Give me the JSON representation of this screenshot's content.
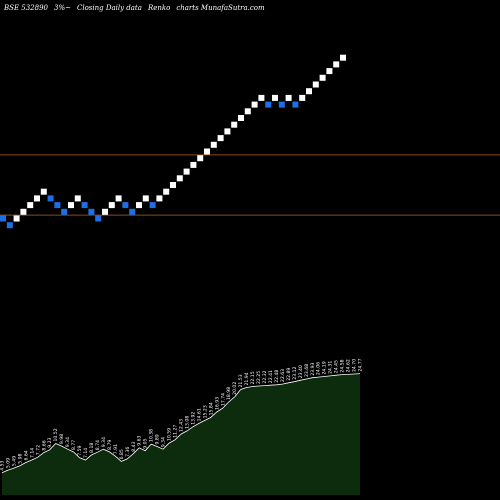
{
  "header": {
    "symbol": "BSE 532890",
    "change": "3%~",
    "label": "Closing Daily data",
    "chart_name": "Renko",
    "site": "charts MunafaSutra.com"
  },
  "colors": {
    "background": "#000000",
    "up_brick": "#ffffff",
    "down_brick": "#1e6fe6",
    "level_line": "#8a4a1a",
    "volume_fill": "#0d2b0d",
    "volume_stroke": "#ffffff",
    "volume_label": "#ffffff"
  },
  "chart_data": {
    "type": "renko",
    "bricks": [
      {
        "dir": "down",
        "level": 0
      },
      {
        "dir": "down",
        "level": -1
      },
      {
        "dir": "up",
        "level": 0
      },
      {
        "dir": "up",
        "level": 1
      },
      {
        "dir": "up",
        "level": 2
      },
      {
        "dir": "up",
        "level": 3
      },
      {
        "dir": "up",
        "level": 4
      },
      {
        "dir": "down",
        "level": 3
      },
      {
        "dir": "down",
        "level": 2
      },
      {
        "dir": "down",
        "level": 1
      },
      {
        "dir": "up",
        "level": 2
      },
      {
        "dir": "up",
        "level": 3
      },
      {
        "dir": "down",
        "level": 2
      },
      {
        "dir": "down",
        "level": 1
      },
      {
        "dir": "down",
        "level": 0
      },
      {
        "dir": "up",
        "level": 1
      },
      {
        "dir": "up",
        "level": 2
      },
      {
        "dir": "up",
        "level": 3
      },
      {
        "dir": "down",
        "level": 2
      },
      {
        "dir": "down",
        "level": 1
      },
      {
        "dir": "up",
        "level": 2
      },
      {
        "dir": "up",
        "level": 3
      },
      {
        "dir": "down",
        "level": 2
      },
      {
        "dir": "up",
        "level": 3
      },
      {
        "dir": "up",
        "level": 4
      },
      {
        "dir": "up",
        "level": 5
      },
      {
        "dir": "up",
        "level": 6
      },
      {
        "dir": "up",
        "level": 7
      },
      {
        "dir": "up",
        "level": 8
      },
      {
        "dir": "up",
        "level": 9
      },
      {
        "dir": "up",
        "level": 10
      },
      {
        "dir": "up",
        "level": 11
      },
      {
        "dir": "up",
        "level": 12
      },
      {
        "dir": "up",
        "level": 13
      },
      {
        "dir": "up",
        "level": 14
      },
      {
        "dir": "up",
        "level": 15
      },
      {
        "dir": "up",
        "level": 16
      },
      {
        "dir": "up",
        "level": 17
      },
      {
        "dir": "up",
        "level": 18
      },
      {
        "dir": "down",
        "level": 17
      },
      {
        "dir": "up",
        "level": 18
      },
      {
        "dir": "down",
        "level": 17
      },
      {
        "dir": "up",
        "level": 18
      },
      {
        "dir": "down",
        "level": 17
      },
      {
        "dir": "up",
        "level": 18
      },
      {
        "dir": "up",
        "level": 19
      },
      {
        "dir": "up",
        "level": 20
      },
      {
        "dir": "up",
        "level": 21
      },
      {
        "dir": "up",
        "level": 22
      },
      {
        "dir": "up",
        "level": 23
      },
      {
        "dir": "up",
        "level": 24
      }
    ],
    "level_lines": [
      9.5,
      0.5
    ],
    "volume": [
      {
        "label": "4.53",
        "value": 4.53
      },
      {
        "label": "5.09",
        "value": 5.09
      },
      {
        "label": "5.49",
        "value": 5.49
      },
      {
        "label": "5.98",
        "value": 5.98
      },
      {
        "label": "6.64",
        "value": 6.64
      },
      {
        "label": "7.14",
        "value": 7.14
      },
      {
        "label": "7.72",
        "value": 7.72
      },
      {
        "label": "8.66",
        "value": 8.66
      },
      {
        "label": "9.23",
        "value": 9.23
      },
      {
        "label": "10.52",
        "value": 10.52
      },
      {
        "label": "9.98",
        "value": 9.98
      },
      {
        "label": "9.34",
        "value": 9.34
      },
      {
        "label": "8.77",
        "value": 8.77
      },
      {
        "label": "7.59",
        "value": 7.59
      },
      {
        "label": "7.14",
        "value": 7.14
      },
      {
        "label": "8.18",
        "value": 8.18
      },
      {
        "label": "8.74",
        "value": 8.74
      },
      {
        "label": "9.34",
        "value": 9.34
      },
      {
        "label": "8.79",
        "value": 8.79
      },
      {
        "label": "7.91",
        "value": 7.91
      },
      {
        "label": "6.85",
        "value": 6.85
      },
      {
        "label": "7.36",
        "value": 7.36
      },
      {
        "label": "8.43",
        "value": 8.43
      },
      {
        "label": "9.63",
        "value": 9.63
      },
      {
        "label": "9.05",
        "value": 9.05
      },
      {
        "label": "10.38",
        "value": 10.38
      },
      {
        "label": "9.89",
        "value": 9.89
      },
      {
        "label": "9.34",
        "value": 9.34
      },
      {
        "label": "10.59",
        "value": 10.59
      },
      {
        "label": "11.27",
        "value": 11.27
      },
      {
        "label": "12.43",
        "value": 12.43
      },
      {
        "label": "13.08",
        "value": 13.08
      },
      {
        "label": "13.92",
        "value": 13.92
      },
      {
        "label": "14.61",
        "value": 14.61
      },
      {
        "label": "15.23",
        "value": 15.23
      },
      {
        "label": "15.84",
        "value": 15.84
      },
      {
        "label": "16.93",
        "value": 16.93
      },
      {
        "label": "17.74",
        "value": 17.74
      },
      {
        "label": "18.98",
        "value": 18.98
      },
      {
        "label": "20.02",
        "value": 20.02
      },
      {
        "label": "21.53",
        "value": 21.53
      },
      {
        "label": "21.94",
        "value": 21.94
      },
      {
        "label": "22.15",
        "value": 22.15
      },
      {
        "label": "22.25",
        "value": 22.25
      },
      {
        "label": "22.32",
        "value": 22.32
      },
      {
        "label": "22.41",
        "value": 22.41
      },
      {
        "label": "22.48",
        "value": 22.48
      },
      {
        "label": "22.63",
        "value": 22.63
      },
      {
        "label": "22.89",
        "value": 22.89
      },
      {
        "label": "23.12",
        "value": 23.12
      },
      {
        "label": "23.40",
        "value": 23.4
      },
      {
        "label": "23.68",
        "value": 23.68
      },
      {
        "label": "23.93",
        "value": 23.93
      },
      {
        "label": "24.06",
        "value": 24.06
      },
      {
        "label": "24.19",
        "value": 24.19
      },
      {
        "label": "24.31",
        "value": 24.31
      },
      {
        "label": "24.45",
        "value": 24.45
      },
      {
        "label": "24.58",
        "value": 24.58
      },
      {
        "label": "24.62",
        "value": 24.62
      },
      {
        "label": "24.70",
        "value": 24.7
      },
      {
        "label": "24.77",
        "value": 24.77
      }
    ]
  }
}
